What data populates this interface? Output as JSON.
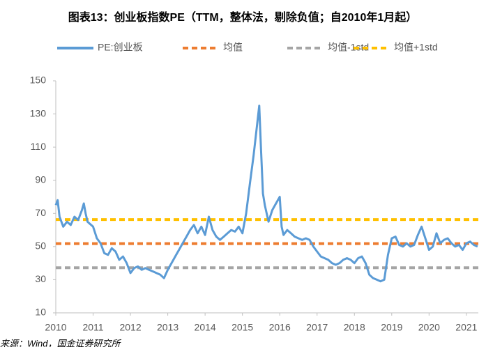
{
  "chart_data": {
    "type": "line",
    "title": "图表13：创业板指数PE（TTM，整体法，剔除负值；自2010年1月起）",
    "source": "来源：Wind，国金证券研究所",
    "x": [
      2010.0,
      2010.05,
      2010.1,
      2010.2,
      2010.3,
      2010.4,
      2010.5,
      2010.6,
      2010.7,
      2010.75,
      2010.8,
      2010.85,
      2010.9,
      2011.0,
      2011.1,
      2011.2,
      2011.3,
      2011.4,
      2011.5,
      2011.6,
      2011.7,
      2011.8,
      2011.9,
      2012.0,
      2012.1,
      2012.2,
      2012.3,
      2012.4,
      2012.5,
      2012.6,
      2012.7,
      2012.8,
      2012.9,
      2013.0,
      2013.1,
      2013.2,
      2013.3,
      2013.4,
      2013.5,
      2013.6,
      2013.7,
      2013.8,
      2013.9,
      2014.0,
      2014.1,
      2014.2,
      2014.3,
      2014.4,
      2014.5,
      2014.6,
      2014.7,
      2014.8,
      2014.9,
      2015.0,
      2015.1,
      2015.2,
      2015.3,
      2015.4,
      2015.45,
      2015.5,
      2015.55,
      2015.6,
      2015.7,
      2015.8,
      2015.9,
      2016.0,
      2016.05,
      2016.1,
      2016.2,
      2016.3,
      2016.4,
      2016.5,
      2016.6,
      2016.7,
      2016.8,
      2016.9,
      2017.0,
      2017.1,
      2017.2,
      2017.3,
      2017.4,
      2017.5,
      2017.6,
      2017.7,
      2017.8,
      2017.9,
      2018.0,
      2018.1,
      2018.2,
      2018.3,
      2018.4,
      2018.5,
      2018.6,
      2018.7,
      2018.8,
      2018.9,
      2019.0,
      2019.1,
      2019.2,
      2019.3,
      2019.4,
      2019.5,
      2019.6,
      2019.7,
      2019.8,
      2019.9,
      2020.0,
      2020.1,
      2020.2,
      2020.3,
      2020.4,
      2020.5,
      2020.6,
      2020.7,
      2020.8,
      2020.9,
      2021.0,
      2021.1,
      2021.2,
      2021.3
    ],
    "series": [
      {
        "name": "PE:创业板",
        "color": "#5b9bd5",
        "values": [
          75,
          78,
          68,
          62,
          65,
          63,
          68,
          66,
          72,
          76,
          70,
          65,
          64,
          62,
          55,
          52,
          46,
          45,
          49,
          47,
          42,
          44,
          40,
          34,
          37,
          38,
          36,
          37,
          36,
          35,
          34,
          33,
          31,
          36,
          40,
          44,
          48,
          52,
          56,
          60,
          63,
          58,
          62,
          57,
          68,
          60,
          56,
          54,
          56,
          58,
          60,
          59,
          62,
          58,
          70,
          88,
          105,
          125,
          135,
          108,
          82,
          75,
          65,
          72,
          76,
          80,
          62,
          57,
          60,
          58,
          56,
          55,
          54,
          55,
          54,
          50,
          47,
          44,
          43,
          42,
          40,
          39,
          40,
          42,
          43,
          42,
          40,
          43,
          44,
          40,
          33,
          31,
          30,
          29,
          30,
          45,
          55,
          56,
          51,
          50,
          52,
          50,
          51,
          57,
          62,
          55,
          48,
          50,
          58,
          52,
          54,
          55,
          52,
          50,
          51,
          48,
          52,
          53,
          51,
          50
        ]
      }
    ],
    "reference_lines": [
      {
        "name": "均值",
        "color": "#ed7d31",
        "value": 51.8
      },
      {
        "name": "均值-1std",
        "color": "#a5a5a5",
        "value": 37.2
      },
      {
        "name": "均值+1std",
        "color": "#ffc000",
        "value": 66.3
      }
    ],
    "xlim": [
      2010,
      2021.32
    ],
    "xticks": [
      2010,
      2011,
      2012,
      2013,
      2014,
      2015,
      2016,
      2017,
      2018,
      2019,
      2020,
      2021
    ],
    "ylim": [
      10,
      150
    ],
    "yticks": [
      10,
      30,
      50,
      70,
      90,
      110,
      130,
      150
    ],
    "grid": false,
    "legend": "top"
  }
}
